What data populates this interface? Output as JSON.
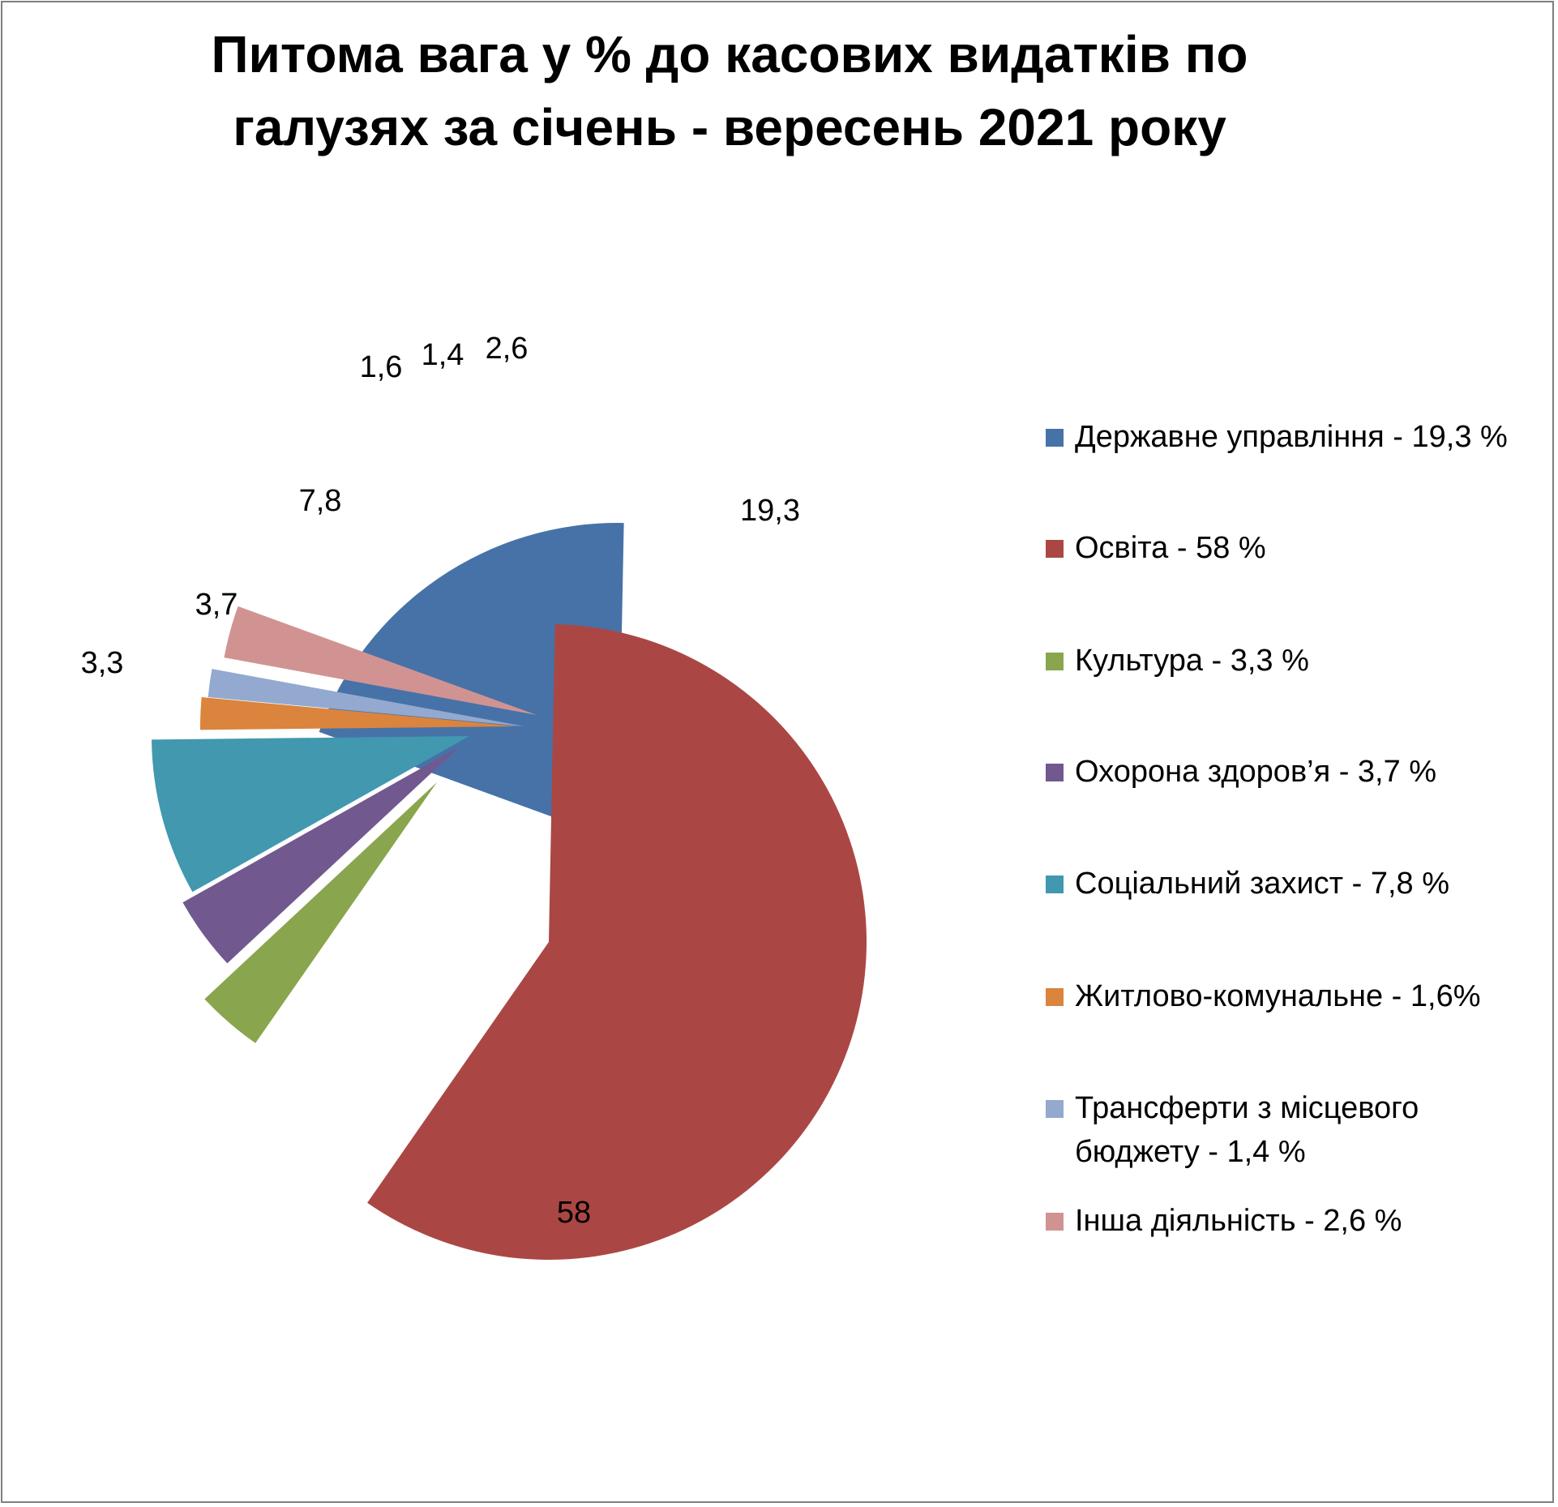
{
  "chart_data": {
    "type": "pie",
    "title": "Питома вага у % до касових видатків по галузях  за  січень - вересень 2021 року",
    "title_lines": [
      "Питома вага у % до касових видатків по",
      "галузях  за  січень - вересень 2021 року"
    ],
    "slices": [
      {
        "name": "Державне управління - 19,3 %",
        "value": 19.3,
        "label": "19,3",
        "color": "#4672A8"
      },
      {
        "name": "Освіта - 58 %",
        "value": 58,
        "label": "58",
        "color": "#AA4744"
      },
      {
        "name": "Культура - 3,3 %",
        "value": 3.3,
        "label": "3,3",
        "color": "#89A54E"
      },
      {
        "name": "Охорона здоров’я - 3,7 %",
        "value": 3.7,
        "label": "3,7",
        "color": "#71588F"
      },
      {
        "name": "Соціальний захист - 7,8 %",
        "value": 7.8,
        "label": "7,8",
        "color": "#4198AF"
      },
      {
        "name": "Житлово-комунальне - 1,6%",
        "value": 1.6,
        "label": "1,6",
        "color": "#DB843D"
      },
      {
        "name": "Трансферти з місцевого бюджету - 1,4 %",
        "value": 1.4,
        "label": "1,4",
        "color": "#93A9CF"
      },
      {
        "name": "Інша діяльність - 2,6 %",
        "value": 2.6,
        "label": "2,6",
        "color": "#D19392"
      }
    ],
    "legend_position": "right",
    "exploded": true
  }
}
